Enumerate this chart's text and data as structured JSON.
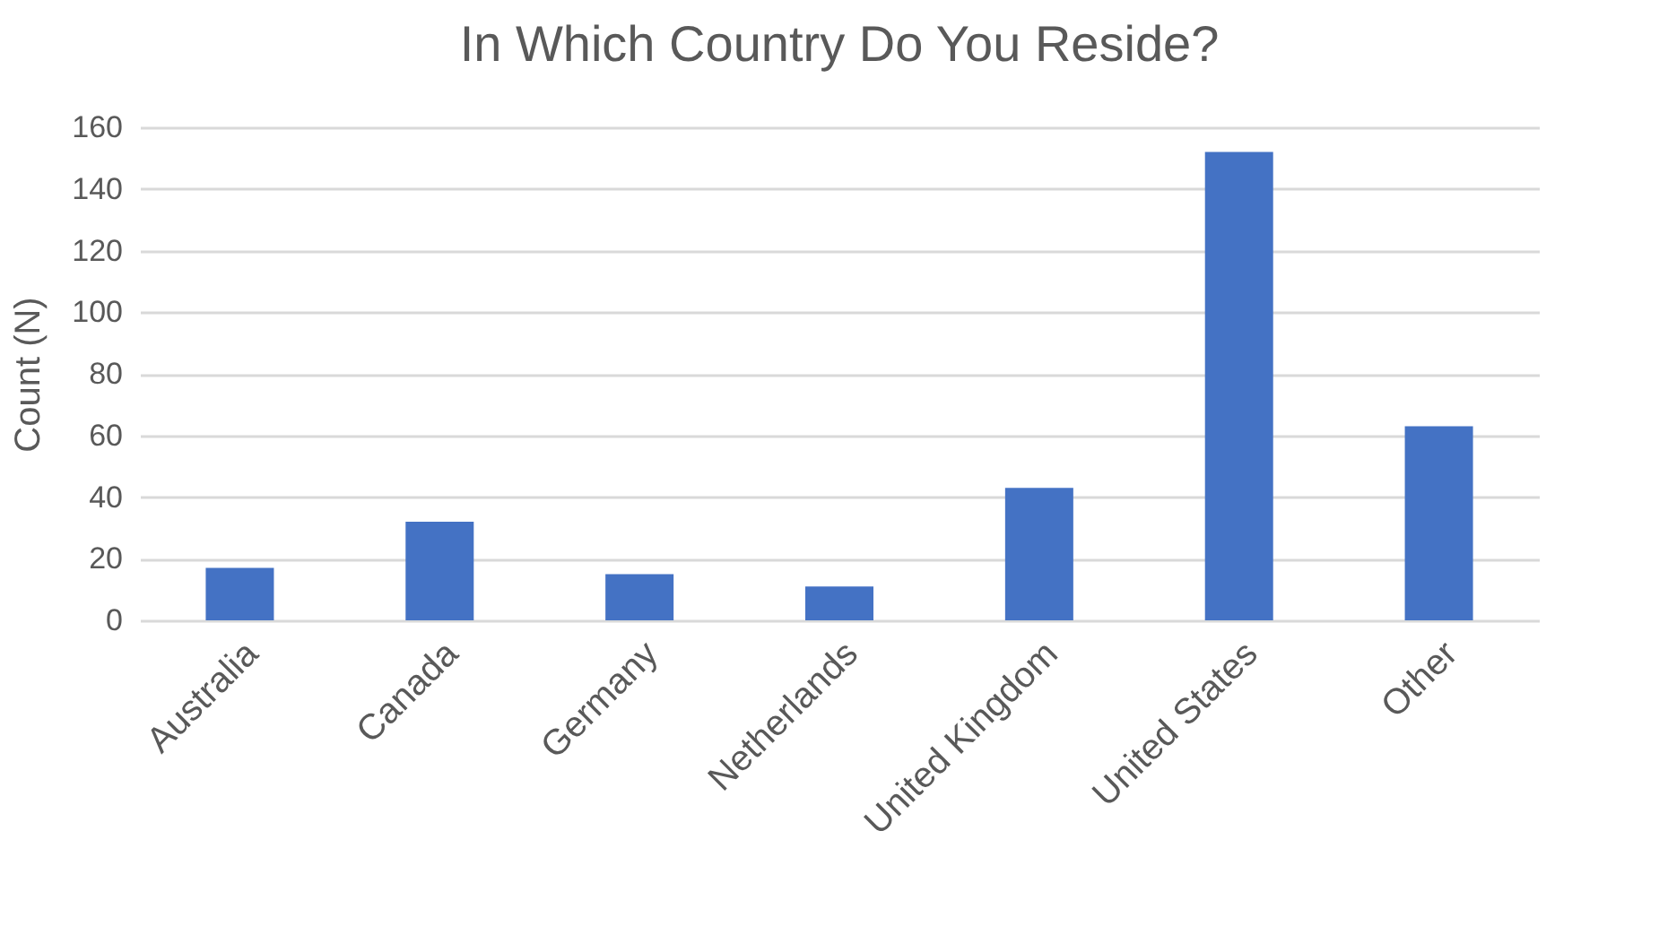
{
  "chart_data": {
    "type": "bar",
    "title": "In Which Country Do You Reside?",
    "ylabel": "Count (N)",
    "categories": [
      "Australia",
      "Canada",
      "Germany",
      "Netherlands",
      "United Kingdom",
      "United States",
      "Other"
    ],
    "values": [
      17,
      32,
      15,
      11,
      43,
      152,
      63
    ],
    "color": "#4472c4",
    "ylim": [
      0,
      160
    ],
    "yticks": [
      0,
      20,
      40,
      60,
      80,
      100,
      120,
      140,
      160
    ],
    "grid": "y"
  }
}
